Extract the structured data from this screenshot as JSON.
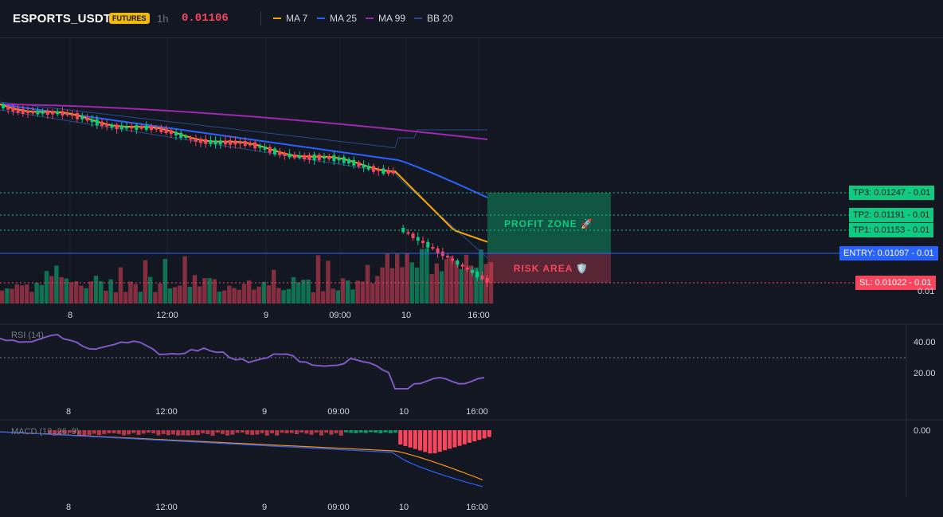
{
  "header": {
    "symbol": "ESPORTS_USDT",
    "badge": "FUTURES",
    "timeframe": "1h",
    "price": "0.01106",
    "legend": [
      {
        "label": "MA 7",
        "color": "#f7a600"
      },
      {
        "label": "MA 25",
        "color": "#2962ff"
      },
      {
        "label": "MA 99",
        "color": "#9c27b0"
      },
      {
        "label": "BB 20",
        "color": "#2a4a8a"
      }
    ]
  },
  "zones": {
    "profit_label": "PROFIT ZONE 🚀",
    "risk_label": "RISK AREA 🛡️",
    "tp3": "TP3: 0.01247",
    "tp2": "TP2: 0.01191",
    "tp1": "TP1: 0.01153",
    "entry": "ENTRY: 0.01097",
    "sl": "SL: 0.01022",
    "tag_value": "0.01",
    "axis_value": "0.01"
  },
  "x_axis": [
    "8",
    "12:00",
    "9",
    "09:00",
    "10",
    "16:00"
  ],
  "rsi": {
    "label": "RSI (14)",
    "ticks": [
      "40.00",
      "20.00"
    ]
  },
  "macd": {
    "label": "MACD (12, 26, 9)",
    "ticks": [
      "0.00"
    ]
  },
  "colors": {
    "up": "#0ecb81",
    "down": "#f6465d",
    "bg": "#131722",
    "grid": "#1e2330"
  }
}
